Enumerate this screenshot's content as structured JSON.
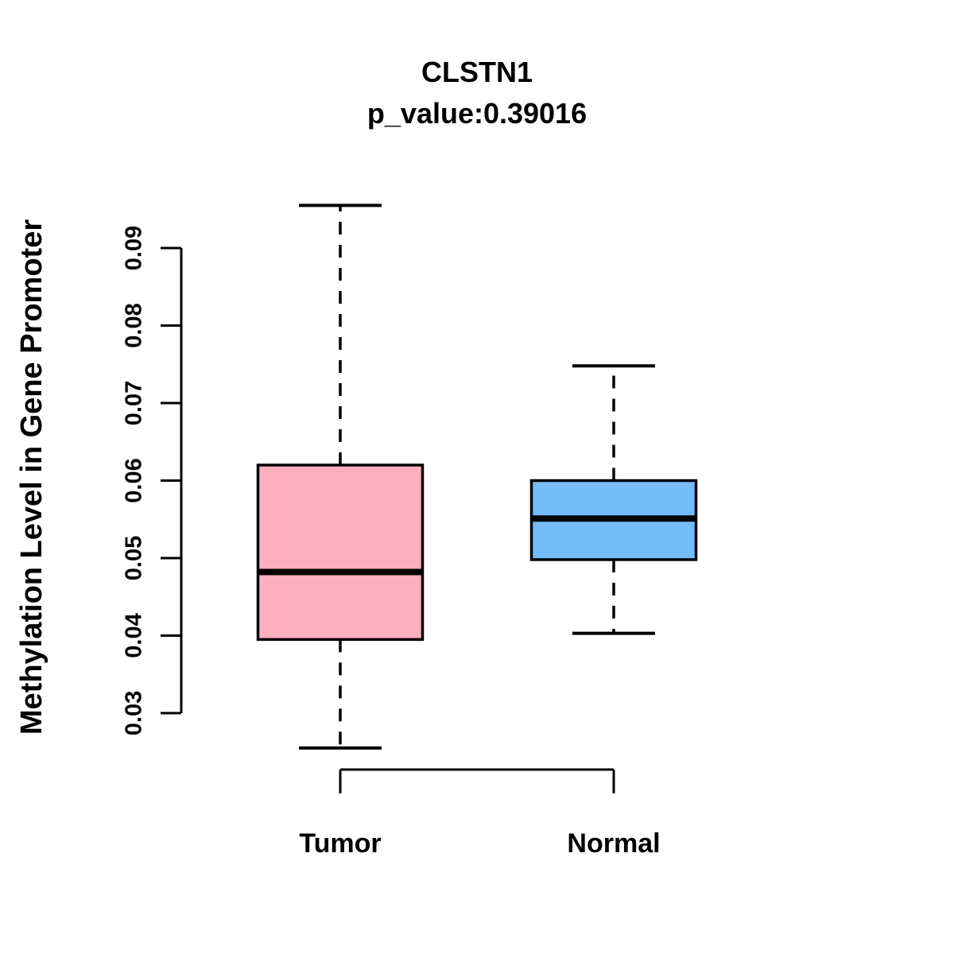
{
  "figure": {
    "background": "#ffffff",
    "stroke_color": "#000000"
  },
  "chart_data": {
    "type": "boxplot",
    "title": "CLSTN1",
    "subtitle": "p_value:0.39016",
    "ylabel": "Methylation Level in Gene Promoter",
    "xlabel": "",
    "ylim": [
      0.03,
      0.09
    ],
    "yticks": [
      0.03,
      0.04,
      0.05,
      0.06,
      0.07,
      0.08,
      0.09
    ],
    "ytick_decimals": 2,
    "grid": "off",
    "legend": "none",
    "categories": [
      "Tumor",
      "Normal"
    ],
    "series": [
      {
        "name": "Tumor",
        "box_color": "#FFB0C0",
        "whisker_low": 0.0255,
        "q1": 0.0395,
        "median": 0.0482,
        "q3": 0.062,
        "whisker_high": 0.0955
      },
      {
        "name": "Normal",
        "box_color": "#74BCF7",
        "whisker_low": 0.0403,
        "q1": 0.0498,
        "median": 0.0551,
        "q3": 0.06,
        "whisker_high": 0.0748
      }
    ]
  }
}
